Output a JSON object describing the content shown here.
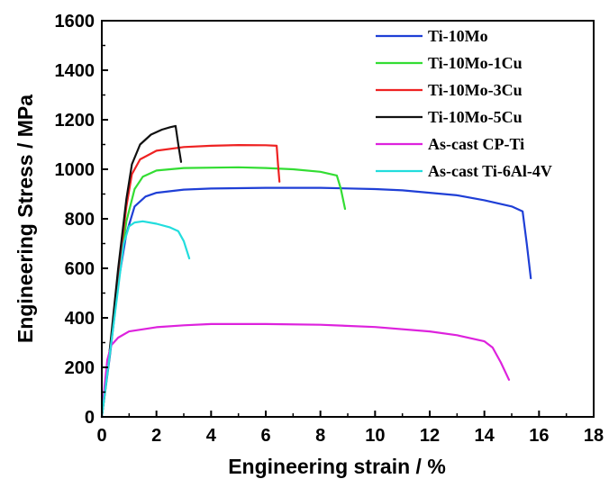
{
  "chart_data": {
    "type": "line",
    "title": "",
    "xlabel": "Engineering strain / %",
    "ylabel": "Engineering Stress / MPa",
    "xlim": [
      0,
      18
    ],
    "ylim": [
      0,
      1600
    ],
    "x_ticks": [
      "0",
      "2",
      "4",
      "6",
      "8",
      "10",
      "12",
      "14",
      "16",
      "18"
    ],
    "y_ticks": [
      "0",
      "200",
      "400",
      "600",
      "800",
      "1000",
      "1200",
      "1400",
      "1600"
    ],
    "legend_position": "top-right",
    "series": [
      {
        "name": "Ti-10Mo",
        "color": "#1f3fd6",
        "points": [
          [
            0,
            0
          ],
          [
            0.3,
            250
          ],
          [
            0.6,
            540
          ],
          [
            0.9,
            740
          ],
          [
            1.2,
            850
          ],
          [
            1.6,
            890
          ],
          [
            2,
            905
          ],
          [
            3,
            918
          ],
          [
            4,
            922
          ],
          [
            6,
            925
          ],
          [
            8,
            925
          ],
          [
            10,
            920
          ],
          [
            11,
            915
          ],
          [
            12,
            905
          ],
          [
            13,
            895
          ],
          [
            14,
            875
          ],
          [
            15,
            850
          ],
          [
            15.4,
            830
          ],
          [
            15.55,
            700
          ],
          [
            15.7,
            560
          ]
        ]
      },
      {
        "name": "Ti-10Mo-1Cu",
        "color": "#33dd33",
        "points": [
          [
            0,
            0
          ],
          [
            0.3,
            260
          ],
          [
            0.6,
            560
          ],
          [
            0.9,
            790
          ],
          [
            1.2,
            920
          ],
          [
            1.5,
            970
          ],
          [
            2,
            995
          ],
          [
            3,
            1005
          ],
          [
            5,
            1008
          ],
          [
            6,
            1005
          ],
          [
            7,
            1000
          ],
          [
            8,
            990
          ],
          [
            8.6,
            975
          ],
          [
            8.75,
            920
          ],
          [
            8.9,
            840
          ]
        ]
      },
      {
        "name": "Ti-10Mo-3Cu",
        "color": "#ee2222",
        "points": [
          [
            0,
            0
          ],
          [
            0.3,
            270
          ],
          [
            0.6,
            580
          ],
          [
            0.9,
            850
          ],
          [
            1.1,
            980
          ],
          [
            1.4,
            1040
          ],
          [
            2,
            1075
          ],
          [
            3,
            1090
          ],
          [
            4,
            1095
          ],
          [
            5,
            1098
          ],
          [
            6,
            1097
          ],
          [
            6.4,
            1095
          ],
          [
            6.45,
            1020
          ],
          [
            6.5,
            950
          ]
        ]
      },
      {
        "name": "Ti-10Mo-5Cu",
        "color": "#111111",
        "points": [
          [
            0,
            0
          ],
          [
            0.3,
            280
          ],
          [
            0.6,
            600
          ],
          [
            0.9,
            880
          ],
          [
            1.1,
            1020
          ],
          [
            1.4,
            1100
          ],
          [
            1.8,
            1140
          ],
          [
            2.2,
            1160
          ],
          [
            2.5,
            1170
          ],
          [
            2.7,
            1175
          ],
          [
            2.8,
            1100
          ],
          [
            2.9,
            1030
          ]
        ]
      },
      {
        "name": "As-cast CP-Ti",
        "color": "#dd22dd",
        "points": [
          [
            0,
            0
          ],
          [
            0.1,
            120
          ],
          [
            0.2,
            230
          ],
          [
            0.35,
            290
          ],
          [
            0.6,
            320
          ],
          [
            1,
            345
          ],
          [
            2,
            362
          ],
          [
            3,
            370
          ],
          [
            4,
            375
          ],
          [
            6,
            375
          ],
          [
            8,
            372
          ],
          [
            10,
            363
          ],
          [
            12,
            345
          ],
          [
            13,
            330
          ],
          [
            14,
            305
          ],
          [
            14.3,
            280
          ],
          [
            14.6,
            220
          ],
          [
            14.9,
            150
          ]
        ]
      },
      {
        "name": "As-cast Ti-6Al-4V",
        "color": "#22dddd",
        "points": [
          [
            0,
            0
          ],
          [
            0.3,
            260
          ],
          [
            0.6,
            520
          ],
          [
            0.8,
            700
          ],
          [
            1,
            770
          ],
          [
            1.2,
            785
          ],
          [
            1.5,
            790
          ],
          [
            2,
            780
          ],
          [
            2.5,
            765
          ],
          [
            2.8,
            750
          ],
          [
            3,
            710
          ],
          [
            3.2,
            640
          ]
        ]
      }
    ]
  }
}
